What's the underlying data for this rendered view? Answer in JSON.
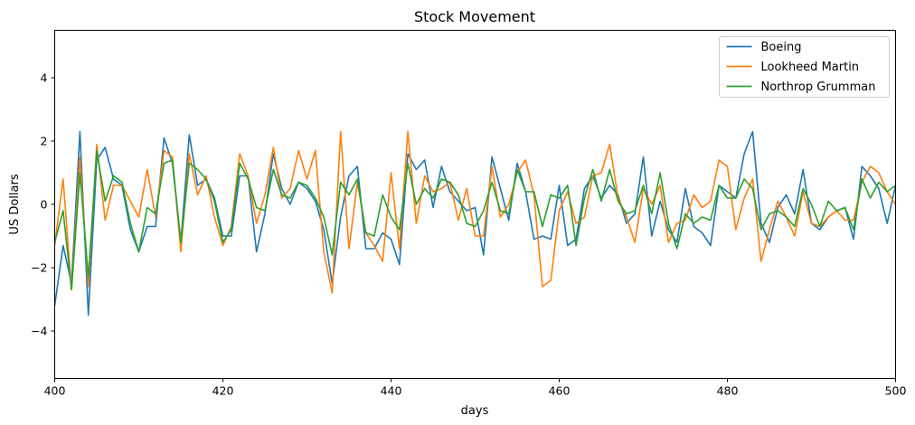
{
  "chart_data": {
    "type": "line",
    "title": "Stock Movement",
    "xlabel": "days",
    "ylabel": "US Dollars",
    "xlim": [
      400,
      500
    ],
    "ylim": [
      -5.5,
      5.5
    ],
    "xticks": [
      400,
      420,
      440,
      460,
      480,
      500
    ],
    "yticks": [
      -4,
      -2,
      0,
      2,
      4
    ],
    "ytick_labels": [
      "−4",
      "−2",
      "0",
      "2",
      "4"
    ],
    "grid": false,
    "legend": "top-right",
    "x": [
      400,
      401,
      402,
      403,
      404,
      405,
      406,
      407,
      408,
      409,
      410,
      411,
      412,
      413,
      414,
      415,
      416,
      417,
      418,
      419,
      420,
      421,
      422,
      423,
      424,
      425,
      426,
      427,
      428,
      429,
      430,
      431,
      432,
      433,
      434,
      435,
      436,
      437,
      438,
      439,
      440,
      441,
      442,
      443,
      444,
      445,
      446,
      447,
      448,
      449,
      450,
      451,
      452,
      453,
      454,
      455,
      456,
      457,
      458,
      459,
      460,
      461,
      462,
      463,
      464,
      465,
      466,
      467,
      468,
      469,
      470,
      471,
      472,
      473,
      474,
      475,
      476,
      477,
      478,
      479,
      480,
      481,
      482,
      483,
      484,
      485,
      486,
      487,
      488,
      489,
      490,
      491,
      492,
      493,
      494,
      495,
      496,
      497,
      498,
      499,
      500
    ],
    "series": [
      {
        "name": "Boeing",
        "color": "#1f77b4",
        "values": [
          -3.2,
          -1.3,
          -2.5,
          2.3,
          -3.5,
          1.4,
          1.8,
          0.8,
          0.6,
          -0.8,
          -1.5,
          -0.7,
          -0.7,
          2.1,
          1.3,
          -1.2,
          2.2,
          0.6,
          0.8,
          0.2,
          -1.0,
          -1.0,
          0.9,
          0.9,
          -1.5,
          -0.3,
          1.6,
          0.5,
          0.0,
          0.7,
          0.5,
          0.1,
          -0.8,
          -2.5,
          -0.4,
          0.9,
          1.2,
          -1.4,
          -1.4,
          -0.9,
          -1.1,
          -1.9,
          1.6,
          1.1,
          1.4,
          -0.1,
          1.2,
          0.4,
          0.1,
          -0.2,
          -0.1,
          -1.6,
          1.5,
          0.5,
          -0.5,
          1.3,
          0.4,
          -1.1,
          -1.0,
          -1.1,
          0.6,
          -1.3,
          -1.1,
          0.5,
          0.9,
          0.2,
          0.6,
          0.3,
          -0.6,
          -0.3,
          1.5,
          -1.0,
          0.1,
          -0.8,
          -1.2,
          0.5,
          -0.7,
          -0.9,
          -1.3,
          0.6,
          0.4,
          0.2,
          1.6,
          2.3,
          -0.6,
          -1.2,
          -0.1,
          0.3,
          -0.3,
          1.1,
          -0.6,
          -0.8,
          -0.4,
          -0.2,
          -0.1,
          -1.1,
          1.2,
          0.9,
          0.5,
          -0.6,
          0.6
        ]
      },
      {
        "name": "Lookheed Martin",
        "color": "#ff7f0e",
        "values": [
          -1.3,
          0.8,
          -2.7,
          1.5,
          -2.6,
          1.9,
          -0.5,
          0.6,
          0.6,
          0.1,
          -0.4,
          1.1,
          -0.4,
          1.7,
          1.5,
          -1.5,
          1.6,
          0.3,
          0.9,
          -0.4,
          -1.3,
          -0.7,
          1.6,
          0.9,
          -0.6,
          0.3,
          1.8,
          0.2,
          0.5,
          1.7,
          0.8,
          1.7,
          -1.5,
          -2.8,
          2.3,
          -1.4,
          0.7,
          -0.9,
          -1.3,
          -1.8,
          1.0,
          -1.4,
          2.3,
          -0.6,
          0.9,
          0.4,
          0.5,
          0.7,
          -0.5,
          0.5,
          -1.0,
          -1.0,
          1.2,
          -0.4,
          0.0,
          1.0,
          1.4,
          0.3,
          -2.6,
          -2.4,
          -0.2,
          0.4,
          -0.6,
          -0.4,
          0.9,
          1.0,
          1.9,
          0.2,
          -0.4,
          -1.2,
          0.5,
          0.0,
          0.6,
          -1.2,
          -0.6,
          -0.5,
          0.3,
          -0.1,
          0.1,
          1.4,
          1.2,
          -0.8,
          0.2,
          0.8,
          -1.8,
          -0.8,
          0.1,
          -0.4,
          -1.0,
          0.4,
          -0.6,
          -0.7,
          -0.4,
          -0.2,
          -0.5,
          -0.5,
          0.7,
          1.2,
          1.0,
          0.4,
          0.0
        ]
      },
      {
        "name": "Northrop Grumman",
        "color": "#2ca02c",
        "values": [
          -1.2,
          -0.2,
          -2.7,
          1.0,
          -2.3,
          1.7,
          0.1,
          0.9,
          0.7,
          -0.6,
          -1.5,
          -0.1,
          -0.3,
          1.3,
          1.4,
          -1.2,
          1.3,
          1.1,
          0.8,
          0.1,
          -1.2,
          -0.8,
          1.3,
          0.8,
          -0.1,
          -0.2,
          1.1,
          0.3,
          0.2,
          0.7,
          0.6,
          0.2,
          -0.4,
          -1.6,
          0.7,
          0.3,
          0.8,
          -0.9,
          -1.0,
          0.3,
          -0.4,
          -0.8,
          1.3,
          0.0,
          0.5,
          0.2,
          0.8,
          0.7,
          0.3,
          -0.6,
          -0.7,
          -0.2,
          0.7,
          -0.2,
          -0.3,
          1.1,
          0.4,
          0.4,
          -0.7,
          0.3,
          0.2,
          0.6,
          -1.3,
          0.2,
          1.1,
          0.1,
          1.1,
          0.1,
          -0.3,
          -0.2,
          0.6,
          -0.3,
          1.0,
          -0.6,
          -1.4,
          -0.3,
          -0.6,
          -0.4,
          -0.5,
          0.6,
          0.2,
          0.2,
          0.8,
          0.5,
          -0.8,
          -0.3,
          -0.2,
          -0.4,
          -0.7,
          0.5,
          0.0,
          -0.7,
          0.1,
          -0.2,
          -0.1,
          -0.8,
          0.8,
          0.2,
          0.7,
          0.4,
          0.6
        ]
      }
    ]
  }
}
